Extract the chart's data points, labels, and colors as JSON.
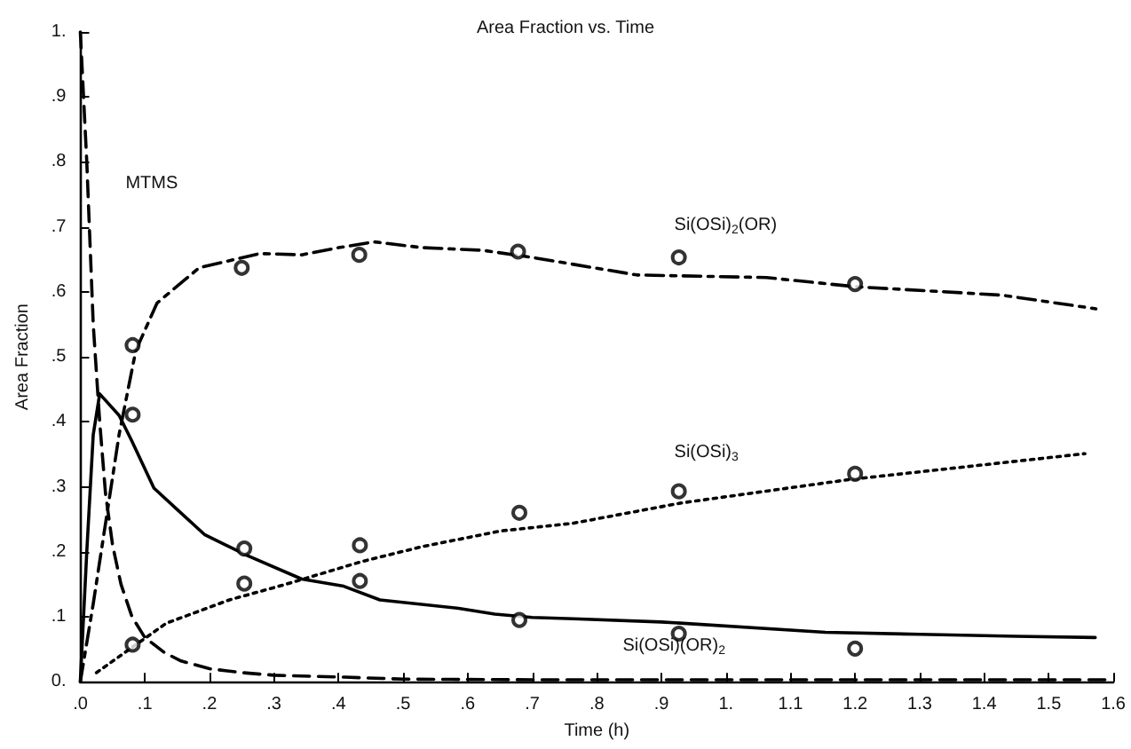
{
  "chart_data": {
    "type": "line",
    "title": "Area Fraction vs. Time",
    "xlabel": "Time (h)",
    "ylabel": "Area Fraction",
    "xlim": [
      0,
      1.6
    ],
    "xticks": [
      {
        "value": 0,
        "label": ".0"
      },
      {
        "value": 0.1,
        "label": ".1"
      },
      {
        "value": 0.2,
        "label": ".2"
      },
      {
        "value": 0.3,
        "label": ".3"
      },
      {
        "value": 0.4,
        "label": ".4"
      },
      {
        "value": 0.5,
        "label": ".5"
      },
      {
        "value": 0.6,
        "label": ".6"
      },
      {
        "value": 0.7,
        "label": ".7"
      },
      {
        "value": 0.8,
        "label": ".8"
      },
      {
        "value": 0.9,
        "label": ".9"
      },
      {
        "value": 1,
        "label": "1."
      },
      {
        "value": 1.1,
        "label": "1.1"
      },
      {
        "value": 1.2,
        "label": "1.2"
      },
      {
        "value": 1.3,
        "label": "1.3"
      },
      {
        "value": 1.4,
        "label": "1.4"
      },
      {
        "value": 1.5,
        "label": "1.5"
      },
      {
        "value": 1.6,
        "label": "1.6"
      }
    ],
    "ylim": [
      0,
      1
    ],
    "yticks": [
      {
        "value": 0,
        "label": "0."
      },
      {
        "value": 0.1,
        "label": ".1"
      },
      {
        "value": 0.2,
        "label": ".2"
      },
      {
        "value": 0.3,
        "label": ".3"
      },
      {
        "value": 0.4,
        "label": ".4"
      },
      {
        "value": 0.5,
        "label": ".5"
      },
      {
        "value": 0.6,
        "label": ".6"
      },
      {
        "value": 0.7,
        "label": ".7"
      },
      {
        "value": 0.8,
        "label": ".8"
      },
      {
        "value": 0.9,
        "label": ".9"
      },
      {
        "value": 1,
        "label": "1."
      }
    ],
    "grid": false,
    "legend": false,
    "series": [
      {
        "name": "MTMS",
        "color": "#000000",
        "line_style": "dashed",
        "marker": "none",
        "x": [
          0,
          0.01,
          0.02,
          0.03,
          0.039,
          0.05,
          0.063,
          0.08,
          0.1,
          0.13,
          0.156,
          0.2,
          0.25,
          0.3,
          0.41,
          0.5,
          0.7,
          1.0,
          1.3,
          1.6
        ],
        "values": [
          1.0,
          0.8,
          0.55,
          0.4,
          0.29,
          0.21,
          0.15,
          0.1,
          0.068,
          0.045,
          0.032,
          0.02,
          0.014,
          0.01,
          0.007,
          0.004,
          0.003,
          0.003,
          0.003,
          0.003
        ]
      },
      {
        "name": "Si(OSi)(OR)$_{2}$",
        "color": "#000000",
        "line_style": "solid",
        "marker": "none",
        "x": [
          0,
          0.01,
          0.02,
          0.03,
          0.06,
          0.08,
          0.114,
          0.15,
          0.193,
          0.259,
          0.343,
          0.408,
          0.464,
          0.586,
          0.642,
          0.7,
          0.764,
          0.9,
          1.154,
          1.3,
          1.45,
          1.572
        ],
        "values": [
          0,
          0.2,
          0.38,
          0.443,
          0.41,
          0.37,
          0.298,
          0.265,
          0.226,
          0.194,
          0.158,
          0.147,
          0.126,
          0.113,
          0.104,
          0.099,
          0.097,
          0.092,
          0.076,
          0.073,
          0.07,
          0.068
        ]
      },
      {
        "name": "Si(OSi)$_{2}$(OR)",
        "color": "#000000",
        "line_style": "dashdot",
        "marker": "none",
        "x": [
          0,
          0.02,
          0.04,
          0.06,
          0.086,
          0.119,
          0.184,
          0.278,
          0.343,
          0.4,
          0.455,
          0.53,
          0.623,
          0.7,
          0.862,
          1.063,
          1.2,
          1.427,
          1.573
        ],
        "values": [
          0,
          0.12,
          0.25,
          0.38,
          0.51,
          0.583,
          0.637,
          0.659,
          0.657,
          0.668,
          0.677,
          0.668,
          0.664,
          0.653,
          0.626,
          0.622,
          0.608,
          0.595,
          0.574
        ]
      },
      {
        "name": "Si(OSi)$_{3}$",
        "color": "#000000",
        "line_style": "dotted",
        "marker": "none",
        "x": [
          0.025,
          0.133,
          0.231,
          0.315,
          0.436,
          0.53,
          0.651,
          0.764,
          0.93,
          1.19,
          1.556
        ],
        "values": [
          0.014,
          0.09,
          0.126,
          0.149,
          0.185,
          0.208,
          0.232,
          0.244,
          0.275,
          0.311,
          0.351
        ]
      },
      {
        "type": "scatter",
        "color": "#000000",
        "marker": "circle",
        "x": [
          0.081,
          0.25,
          0.432,
          0.678,
          0.927,
          1.2,
          0.081,
          0.254,
          0.433,
          0.68,
          0.927,
          1.2,
          0.081,
          0.254,
          0.433,
          0.68,
          0.927,
          1.2
        ],
        "values": [
          0.518,
          0.637,
          0.657,
          0.662,
          0.653,
          0.612,
          0.411,
          0.205,
          0.155,
          0.095,
          0.074,
          0.051,
          0.057,
          0.151,
          0.21,
          0.26,
          0.293,
          0.32
        ]
      }
    ]
  }
}
